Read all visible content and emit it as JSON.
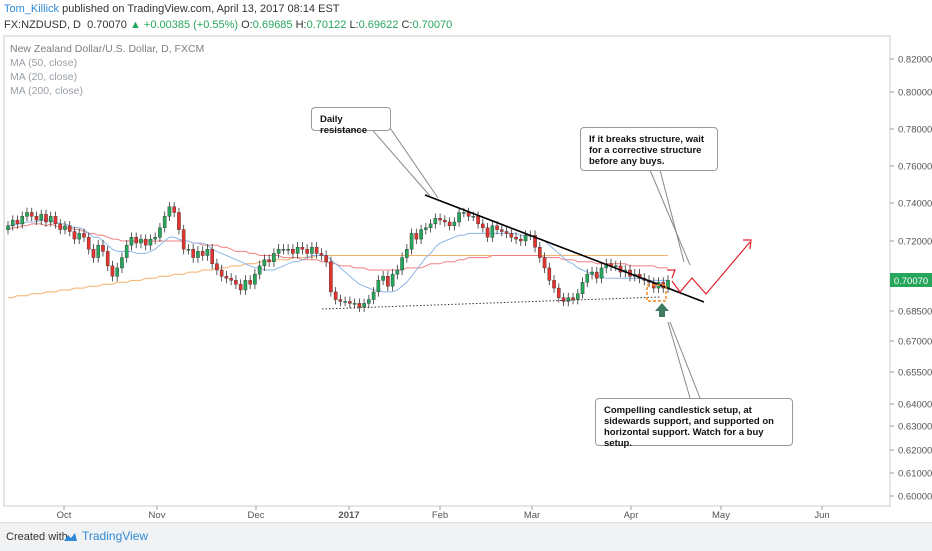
{
  "header": {
    "author": "Tom_Killick",
    "published_text": "published on TradingView.com, April 13, 2017 08:14 EST",
    "symbol": "FX:NZDUSD, D",
    "last": "0.70070",
    "change": "▲ +0.00385 (+0.55%)",
    "o_label": "O:",
    "o_val": "0.69685",
    "h_label": "H:",
    "h_val": "0.70122",
    "l_label": "L:",
    "l_val": "0.69622",
    "c_label": "C:",
    "c_val": "0.70070"
  },
  "legend": {
    "title": "New Zealand Dollar/U.S. Dollar, D, FXCM",
    "ma50": "MA (50, close)",
    "ma20": "MA (20, close)",
    "ma200": "MA (200, close)"
  },
  "annotations": {
    "resistance": "Daily resistance",
    "breaks": "If it breaks structure, wait for a corrective structure before any buys.",
    "setup": "Compelling candlestick setup, at sidewards support, and supported on horizontal support. Watch for a buy setup."
  },
  "footer": {
    "created": "Created with",
    "brand": "TradingView"
  },
  "colors": {
    "up": "#26a65b",
    "down": "#e5332e",
    "ma50": "#f08080",
    "ma20": "#8fb6e6",
    "ma200": "#f5b26b",
    "last_badge": "#26a65b"
  },
  "chart_data": {
    "type": "candlestick",
    "price_axis": [
      "0.82000",
      "0.80000",
      "0.78000",
      "0.76000",
      "0.74000",
      "0.72000",
      "0.70070",
      "0.68500",
      "0.67000",
      "0.65500",
      "0.64000",
      "0.63000",
      "0.62000",
      "0.61000",
      "0.60000"
    ],
    "time_axis": [
      "Oct",
      "Nov",
      "Dec",
      "2017",
      "Feb",
      "Mar",
      "Apr",
      "May",
      "Jun"
    ],
    "last_price": "0.70070",
    "closes": [
      0.728,
      0.731,
      0.729,
      0.733,
      0.735,
      0.733,
      0.731,
      0.734,
      0.73,
      0.733,
      0.729,
      0.726,
      0.728,
      0.725,
      0.721,
      0.724,
      0.722,
      0.716,
      0.712,
      0.718,
      0.715,
      0.708,
      0.703,
      0.707,
      0.712,
      0.718,
      0.722,
      0.719,
      0.721,
      0.718,
      0.721,
      0.722,
      0.727,
      0.733,
      0.738,
      0.735,
      0.726,
      0.716,
      0.716,
      0.712,
      0.715,
      0.713,
      0.716,
      0.709,
      0.706,
      0.703,
      0.702,
      0.701,
      0.699,
      0.696,
      0.701,
      0.699,
      0.704,
      0.708,
      0.711,
      0.71,
      0.714,
      0.716,
      0.716,
      0.716,
      0.714,
      0.717,
      0.716,
      0.714,
      0.717,
      0.714,
      0.713,
      0.71,
      0.695,
      0.691,
      0.69,
      0.69,
      0.689,
      0.689,
      0.687,
      0.689,
      0.691,
      0.695,
      0.701,
      0.703,
      0.698,
      0.704,
      0.706,
      0.712,
      0.716,
      0.724,
      0.721,
      0.726,
      0.727,
      0.729,
      0.732,
      0.731,
      0.73,
      0.728,
      0.73,
      0.735,
      0.735,
      0.733,
      0.733,
      0.729,
      0.727,
      0.722,
      0.728,
      0.726,
      0.725,
      0.724,
      0.722,
      0.721,
      0.72,
      0.723,
      0.723,
      0.717,
      0.712,
      0.707,
      0.701,
      0.697,
      0.692,
      0.69,
      0.692,
      0.691,
      0.694,
      0.7,
      0.704,
      0.705,
      0.702,
      0.707,
      0.709,
      0.708,
      0.708,
      0.705,
      0.706,
      0.703,
      0.704,
      0.702,
      0.701,
      0.7,
      0.697,
      0.7,
      0.697,
      0.701
    ],
    "ma50": [
      0.726,
      0.727,
      0.727,
      0.728,
      0.728,
      0.729,
      0.729,
      0.729,
      0.728,
      0.729,
      0.728,
      0.727,
      0.727,
      0.727,
      0.726,
      0.726,
      0.725,
      0.724,
      0.724,
      0.723,
      0.723,
      0.722,
      0.721,
      0.721,
      0.72,
      0.72,
      0.72,
      0.72,
      0.72,
      0.72,
      0.72,
      0.72,
      0.72,
      0.72,
      0.72,
      0.72,
      0.72,
      0.72,
      0.72,
      0.719,
      0.719,
      0.718,
      0.718,
      0.718,
      0.718,
      0.717,
      0.717,
      0.716,
      0.715,
      0.715,
      0.715,
      0.714,
      0.714,
      0.713,
      0.713,
      0.713,
      0.713,
      0.713,
      0.712,
      0.712,
      0.712,
      0.712,
      0.711,
      0.711,
      0.711,
      0.711,
      0.71,
      0.71,
      0.709,
      0.709,
      0.708,
      0.708,
      0.708,
      0.707,
      0.707,
      0.707,
      0.706,
      0.706,
      0.706,
      0.706,
      0.706,
      0.706,
      0.706,
      0.706,
      0.707,
      0.707,
      0.707,
      0.707,
      0.708,
      0.709,
      0.709,
      0.709,
      0.71,
      0.71,
      0.71,
      0.711,
      0.711,
      0.712,
      0.712,
      0.712,
      0.712,
      0.712,
      0.713,
      0.713,
      0.713,
      0.713,
      0.713,
      0.713,
      0.713,
      0.713,
      0.713,
      0.713,
      0.713,
      0.712,
      0.712,
      0.712,
      0.712,
      0.711,
      0.711,
      0.711,
      0.71,
      0.71,
      0.71,
      0.71,
      0.709,
      0.709,
      0.709,
      0.709,
      0.709,
      0.709,
      0.709,
      0.708,
      0.708,
      0.708,
      0.708,
      0.708,
      0.708,
      0.707,
      0.707,
      0.707
    ],
    "ma20": [
      0.728,
      0.728,
      0.729,
      0.729,
      0.73,
      0.73,
      0.73,
      0.731,
      0.731,
      0.731,
      0.73,
      0.729,
      0.729,
      0.728,
      0.727,
      0.727,
      0.726,
      0.724,
      0.722,
      0.722,
      0.72,
      0.718,
      0.716,
      0.715,
      0.715,
      0.715,
      0.715,
      0.714,
      0.714,
      0.714,
      0.715,
      0.716,
      0.718,
      0.72,
      0.722,
      0.722,
      0.721,
      0.72,
      0.72,
      0.719,
      0.719,
      0.719,
      0.718,
      0.716,
      0.715,
      0.714,
      0.713,
      0.712,
      0.711,
      0.71,
      0.709,
      0.708,
      0.707,
      0.707,
      0.706,
      0.706,
      0.706,
      0.707,
      0.708,
      0.709,
      0.71,
      0.71,
      0.711,
      0.712,
      0.713,
      0.713,
      0.713,
      0.713,
      0.711,
      0.709,
      0.707,
      0.705,
      0.703,
      0.701,
      0.699,
      0.698,
      0.697,
      0.696,
      0.696,
      0.695,
      0.695,
      0.695,
      0.696,
      0.698,
      0.7,
      0.703,
      0.706,
      0.709,
      0.712,
      0.714,
      0.717,
      0.719,
      0.72,
      0.721,
      0.722,
      0.723,
      0.723,
      0.724,
      0.724,
      0.724,
      0.724,
      0.724,
      0.724,
      0.724,
      0.724,
      0.724,
      0.724,
      0.724,
      0.723,
      0.723,
      0.723,
      0.722,
      0.721,
      0.72,
      0.718,
      0.716,
      0.714,
      0.712,
      0.71,
      0.709,
      0.707,
      0.706,
      0.705,
      0.704,
      0.703,
      0.703,
      0.702,
      0.702,
      0.702,
      0.702,
      0.702,
      0.702,
      0.702,
      0.702,
      0.701,
      0.701,
      0.701,
      0.701,
      0.701,
      0.701
    ],
    "ma200": [
      0.692,
      0.692,
      0.693,
      0.693,
      0.693,
      0.694,
      0.694,
      0.694,
      0.695,
      0.695,
      0.695,
      0.696,
      0.696,
      0.696,
      0.697,
      0.697,
      0.697,
      0.698,
      0.698,
      0.698,
      0.699,
      0.699,
      0.699,
      0.7,
      0.7,
      0.7,
      0.701,
      0.701,
      0.701,
      0.702,
      0.702,
      0.702,
      0.703,
      0.703,
      0.703,
      0.704,
      0.704,
      0.704,
      0.705,
      0.705,
      0.705,
      0.706,
      0.706,
      0.706,
      0.707,
      0.707,
      0.707,
      0.708,
      0.708,
      0.708,
      0.709,
      0.709,
      0.709,
      0.71,
      0.71,
      0.71,
      0.711,
      0.711,
      0.711,
      0.711,
      0.712,
      0.712,
      0.712,
      0.712,
      0.712,
      0.713,
      0.713,
      0.713,
      0.713,
      0.713,
      0.713,
      0.713,
      0.713,
      0.713,
      0.713,
      0.713,
      0.713,
      0.713,
      0.713,
      0.713,
      0.713,
      0.713,
      0.713,
      0.713,
      0.713,
      0.713,
      0.713,
      0.713,
      0.713,
      0.713,
      0.713,
      0.713,
      0.713,
      0.713,
      0.713,
      0.713,
      0.713,
      0.713,
      0.713,
      0.713,
      0.713,
      0.713,
      0.713,
      0.713,
      0.713,
      0.713,
      0.713,
      0.713,
      0.713,
      0.713,
      0.713,
      0.713,
      0.713,
      0.713,
      0.713,
      0.713,
      0.713,
      0.713,
      0.713,
      0.713,
      0.713,
      0.713,
      0.713,
      0.713,
      0.713,
      0.713,
      0.713,
      0.713,
      0.713,
      0.713,
      0.713,
      0.713,
      0.713,
      0.713,
      0.713,
      0.713,
      0.713,
      0.713,
      0.713,
      0.713
    ]
  }
}
